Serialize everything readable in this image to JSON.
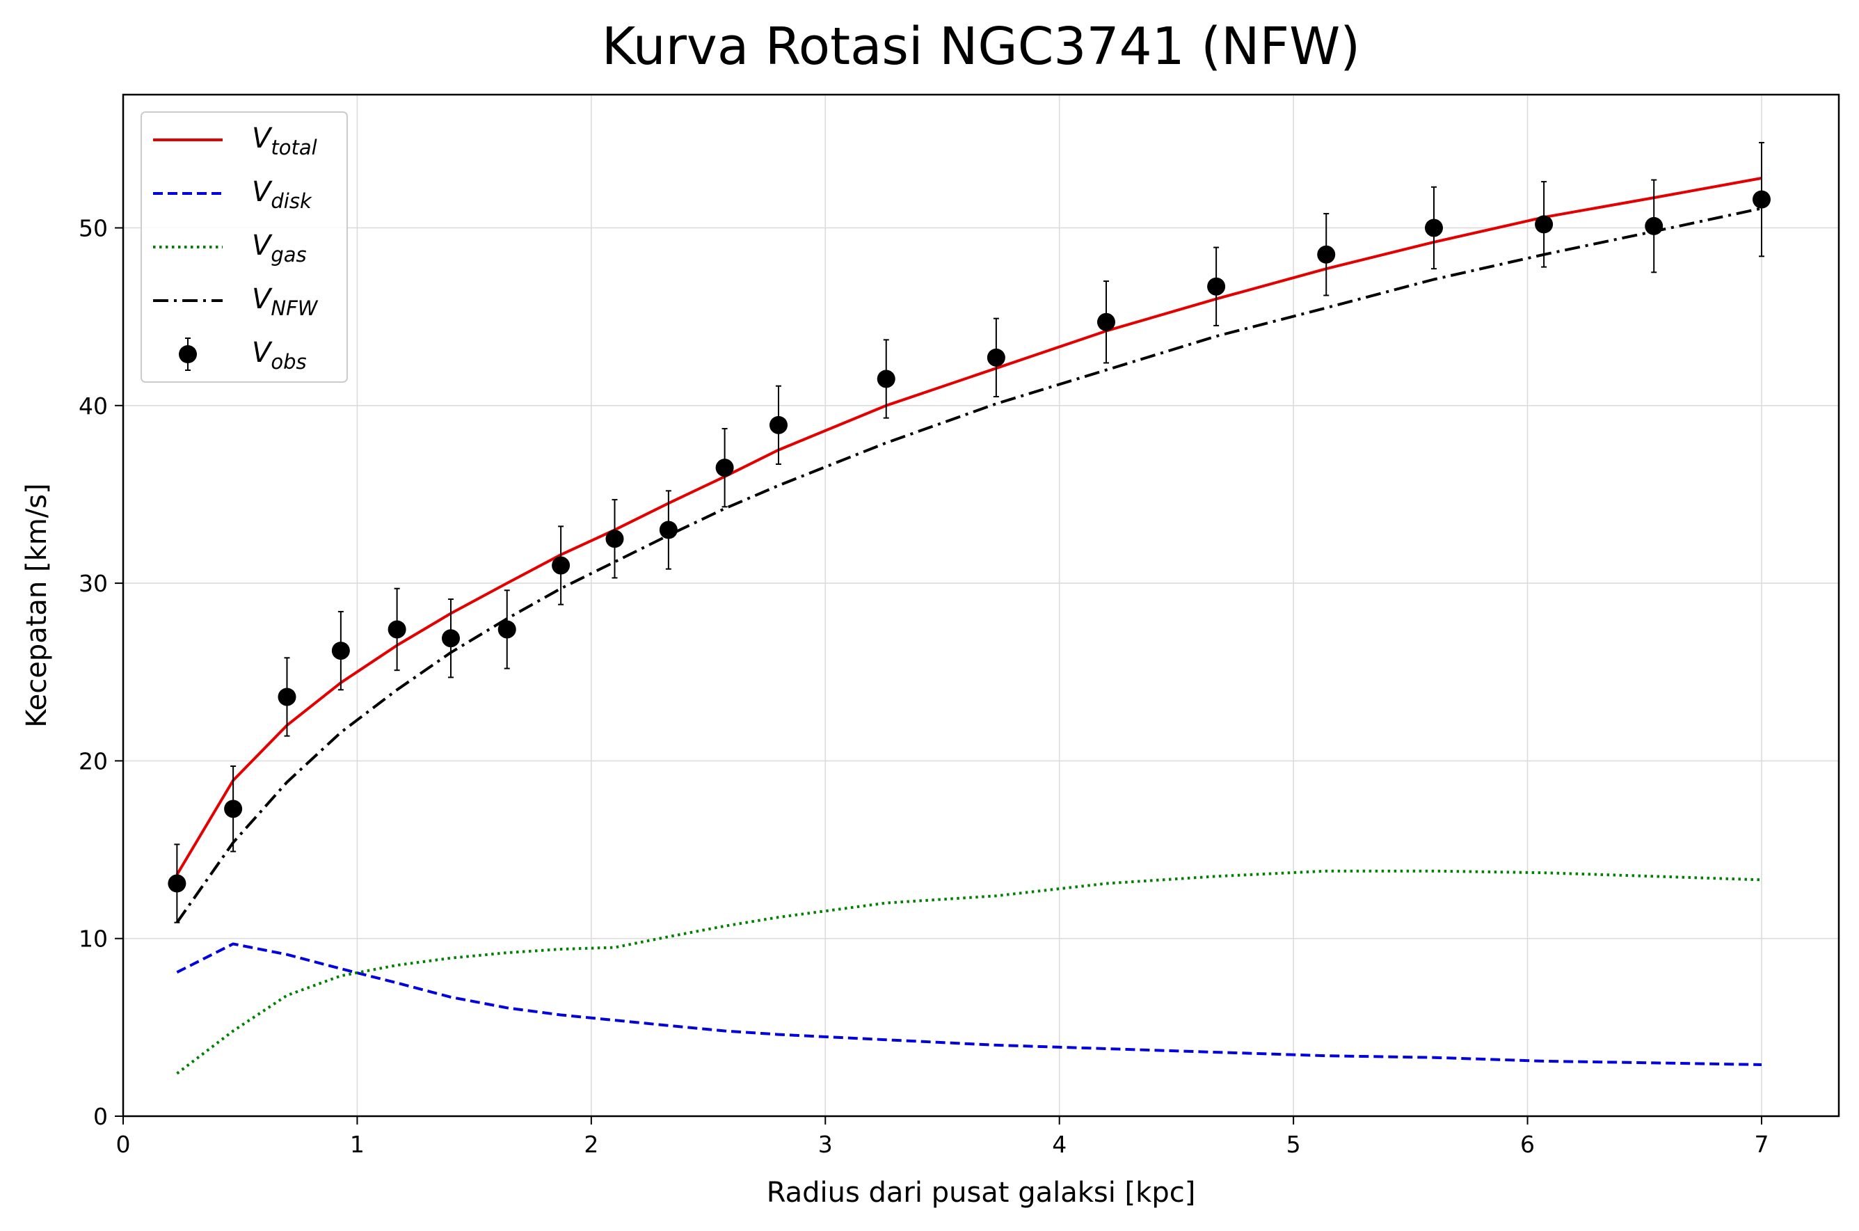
{
  "chart_data": {
    "type": "line",
    "title": "Kurva Rotasi NGC3741 (NFW)",
    "xlabel": "Radius dari pusat galaksi [kpc]",
    "ylabel": "Kecepatan [km/s]",
    "xlim": [
      0,
      7.33
    ],
    "ylim": [
      0,
      57.5
    ],
    "xticks": [
      0,
      1,
      2,
      3,
      4,
      5,
      6,
      7
    ],
    "yticks": [
      0,
      10,
      20,
      30,
      40,
      50
    ],
    "grid": true,
    "legend_position": "top-left",
    "series": [
      {
        "name": "V_total",
        "legend_main": "V",
        "legend_sub": "total",
        "style": "solid",
        "color": "#e50000",
        "x": [
          0.23,
          0.47,
          0.7,
          0.93,
          1.17,
          1.4,
          1.64,
          1.87,
          2.1,
          2.33,
          2.57,
          2.8,
          3.26,
          3.73,
          4.2,
          4.67,
          5.14,
          5.6,
          6.07,
          6.54,
          7.0
        ],
        "y": [
          13.6,
          18.9,
          22.0,
          24.4,
          26.5,
          28.3,
          30.0,
          31.6,
          33.0,
          34.5,
          36.0,
          37.5,
          40.0,
          42.1,
          44.2,
          46.0,
          47.7,
          49.2,
          50.6,
          51.7,
          52.8
        ]
      },
      {
        "name": "V_disk",
        "legend_main": "V",
        "legend_sub": "disk",
        "style": "dashed",
        "color": "#0000e0",
        "x": [
          0.23,
          0.47,
          0.7,
          0.93,
          1.17,
          1.4,
          1.64,
          1.87,
          2.1,
          2.33,
          2.57,
          2.8,
          3.26,
          3.73,
          4.2,
          4.67,
          5.14,
          5.6,
          6.07,
          6.54,
          7.0
        ],
        "y": [
          8.1,
          9.7,
          9.1,
          8.3,
          7.5,
          6.7,
          6.1,
          5.7,
          5.4,
          5.1,
          4.8,
          4.6,
          4.3,
          4.0,
          3.8,
          3.6,
          3.4,
          3.3,
          3.1,
          3.0,
          2.9
        ]
      },
      {
        "name": "V_gas",
        "legend_main": "V",
        "legend_sub": "gas",
        "style": "dotted",
        "color": "#008000",
        "x": [
          0.23,
          0.47,
          0.7,
          0.93,
          1.17,
          1.4,
          1.64,
          1.87,
          2.1,
          2.33,
          2.57,
          2.8,
          3.26,
          3.73,
          4.2,
          4.67,
          5.14,
          5.6,
          6.07,
          6.54,
          7.0
        ],
        "y": [
          2.4,
          4.8,
          6.8,
          7.9,
          8.5,
          8.9,
          9.2,
          9.4,
          9.5,
          10.1,
          10.7,
          11.2,
          12.0,
          12.4,
          13.1,
          13.5,
          13.8,
          13.8,
          13.7,
          13.5,
          13.3
        ]
      },
      {
        "name": "V_NFW",
        "legend_main": "V",
        "legend_sub": "NFW",
        "style": "dashdot",
        "color": "#000000",
        "x": [
          0.23,
          0.47,
          0.7,
          0.93,
          1.17,
          1.4,
          1.64,
          1.87,
          2.1,
          2.33,
          2.57,
          2.8,
          3.26,
          3.73,
          4.2,
          4.67,
          5.14,
          5.6,
          6.07,
          6.54,
          7.0
        ],
        "y": [
          10.9,
          15.4,
          18.8,
          21.6,
          24.0,
          26.1,
          28.0,
          29.7,
          31.2,
          32.7,
          34.2,
          35.5,
          37.9,
          40.1,
          42.0,
          43.9,
          45.5,
          47.1,
          48.5,
          49.8,
          51.1
        ]
      }
    ],
    "observed": {
      "name": "V_obs",
      "legend_main": "V",
      "legend_sub": "obs",
      "color": "#000000",
      "x": [
        0.23,
        0.47,
        0.7,
        0.93,
        1.17,
        1.4,
        1.64,
        1.87,
        2.1,
        2.33,
        2.57,
        2.8,
        3.26,
        3.73,
        4.2,
        4.67,
        5.14,
        5.6,
        6.07,
        6.54,
        7.0
      ],
      "y": [
        13.1,
        17.3,
        23.6,
        26.2,
        27.4,
        26.9,
        27.4,
        31.0,
        32.5,
        33.0,
        36.5,
        38.9,
        41.5,
        42.7,
        44.7,
        46.7,
        48.5,
        50.0,
        50.2,
        50.1,
        51.6
      ],
      "yerr": [
        2.2,
        2.4,
        2.2,
        2.2,
        2.3,
        2.2,
        2.2,
        2.2,
        2.2,
        2.2,
        2.2,
        2.2,
        2.2,
        2.2,
        2.3,
        2.2,
        2.3,
        2.3,
        2.4,
        2.6,
        3.2
      ]
    }
  }
}
